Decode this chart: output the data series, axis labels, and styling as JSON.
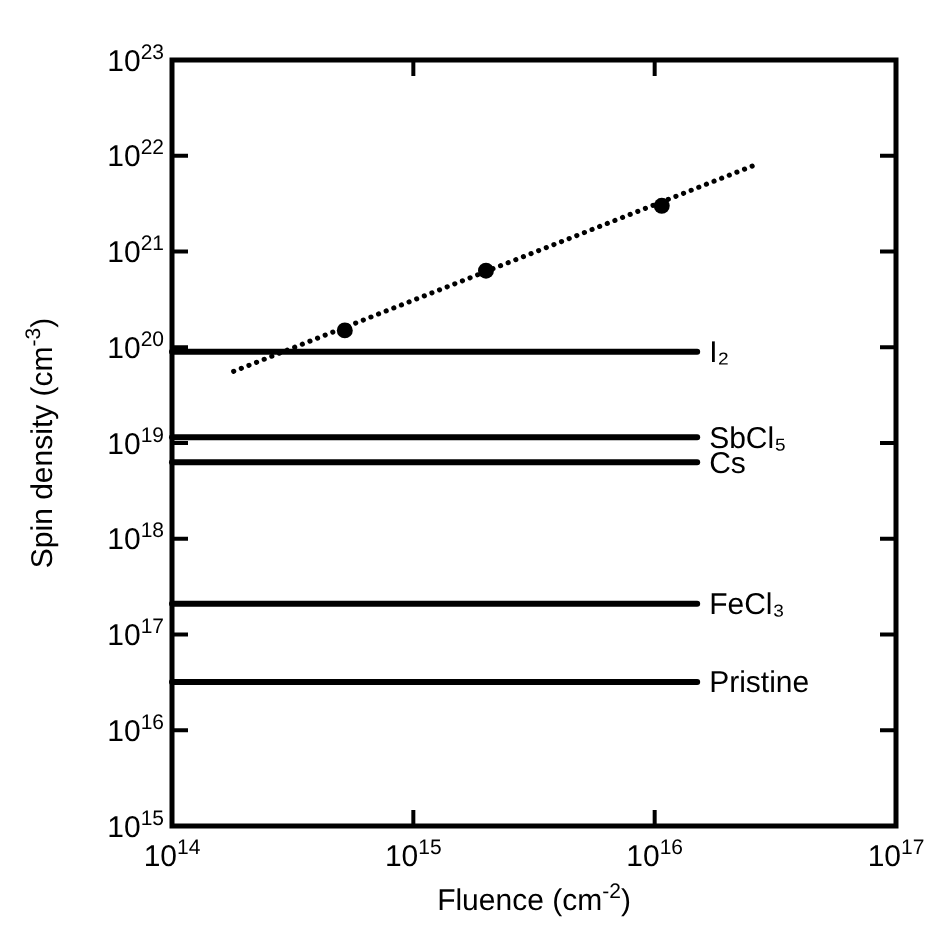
{
  "chart_data": {
    "type": "line",
    "xlabel": "Fluence (cm$^{-2}$)",
    "ylabel": "Spin density (cm$^{-3}$)",
    "log": "xy",
    "xlim": [
      100000000000000.0,
      1e+17
    ],
    "ylim": [
      1000000000000000.0,
      1e+23
    ],
    "xticks": [
      {
        "value": 100000000000000.0,
        "label": "10$^{14}$"
      },
      {
        "value": 1000000000000000.0,
        "label": "10$^{15}$"
      },
      {
        "value": 1e+16,
        "label": "10$^{16}$"
      },
      {
        "value": 1e+17,
        "label": "10$^{17}$"
      }
    ],
    "yticks": [
      {
        "value": 1000000000000000.0,
        "label": "10$^{15}$"
      },
      {
        "value": 1e+16,
        "label": "10$^{16}$"
      },
      {
        "value": 1e+17,
        "label": "10$^{17}$"
      },
      {
        "value": 1e+18,
        "label": "10$^{18}$"
      },
      {
        "value": 1e+19,
        "label": "10$^{19}$"
      },
      {
        "value": 1e+20,
        "label": "10$^{20}$"
      },
      {
        "value": 1e+21,
        "label": "10$^{21}$"
      },
      {
        "value": 1e+22,
        "label": "10$^{22}$"
      },
      {
        "value": 1e+23,
        "label": "10$^{23}$"
      }
    ],
    "series": [
      {
        "name": "I₂",
        "color": "#000000",
        "x": [
          100000000000000.0,
          1.5e+16
        ],
        "values": [
          9e+19,
          9e+19
        ]
      },
      {
        "name": "SbCl₅",
        "color": "#000000",
        "x": [
          100000000000000.0,
          1.5e+16
        ],
        "values": [
          1.15e+19,
          1.15e+19
        ]
      },
      {
        "name": "Cs",
        "color": "#000000",
        "x": [
          100000000000000.0,
          1.5e+16
        ],
        "values": [
          6.3e+18,
          6.3e+18
        ]
      },
      {
        "name": "FeCl₃",
        "color": "#000000",
        "x": [
          100000000000000.0,
          1.5e+16
        ],
        "values": [
          2.1e+17,
          2.1e+17
        ]
      },
      {
        "name": "Pristine",
        "color": "#000000",
        "x": [
          100000000000000.0,
          1.5e+16
        ],
        "values": [
          3.2e+16,
          3.2e+16
        ]
      },
      {
        "color": "#000000",
        "line_style": "dotted",
        "x": [
          180000000000000.0,
          2.7e+16
        ],
        "values": [
          5.6e+19,
          8.3e+21
        ]
      },
      {
        "type": "scatter",
        "color": "#000000",
        "marker": "circle",
        "x": [
          520000000000000.0,
          2000000000000000.0,
          1.07e+16
        ],
        "values": [
          1.5e+20,
          6.3e+20,
          3e+21
        ]
      }
    ]
  }
}
